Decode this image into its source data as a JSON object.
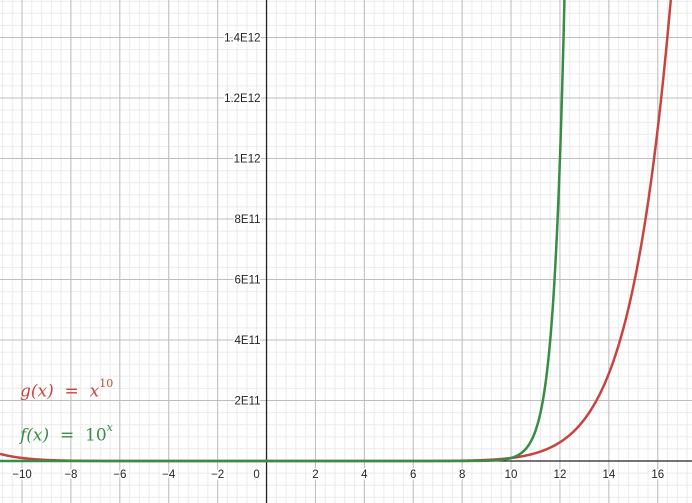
{
  "chart_data": {
    "type": "line",
    "title": "",
    "xlabel": "",
    "ylabel": "",
    "xlim": [
      -10.9,
      17.4
    ],
    "ylim": [
      0,
      1524000000000.0
    ],
    "grid": true,
    "x_ticks": [
      -10,
      -8,
      -6,
      -4,
      -2,
      0,
      2,
      4,
      6,
      8,
      10,
      12,
      14,
      16
    ],
    "x_tick_labels": [
      "−10",
      "−8",
      "−6",
      "−4",
      "−2",
      "0",
      "2",
      "4",
      "6",
      "8",
      "10",
      "12",
      "14",
      "16"
    ],
    "y_ticks": [
      200000000000.0,
      400000000000.0,
      600000000000.0,
      800000000000.0,
      1000000000000.0,
      1200000000000.0,
      1400000000000.0
    ],
    "y_tick_labels": [
      "2E11",
      "4E11",
      "6E11",
      "8E11",
      "1E12",
      "1.2E12",
      "1.4E12"
    ],
    "series": [
      {
        "name": "g(x) = x^10",
        "expression": "x^10",
        "color": "#c74440"
      },
      {
        "name": "f(x) = 10^x",
        "expression": "10^x",
        "color": "#388c46"
      }
    ],
    "legend": {
      "placement": "bottom-left",
      "g": {
        "lhs": "g(x)",
        "eq": "=",
        "base": "x",
        "exp": "10"
      },
      "f": {
        "lhs": "f(x)",
        "eq": "=",
        "base": "10",
        "exp": "x"
      }
    }
  }
}
